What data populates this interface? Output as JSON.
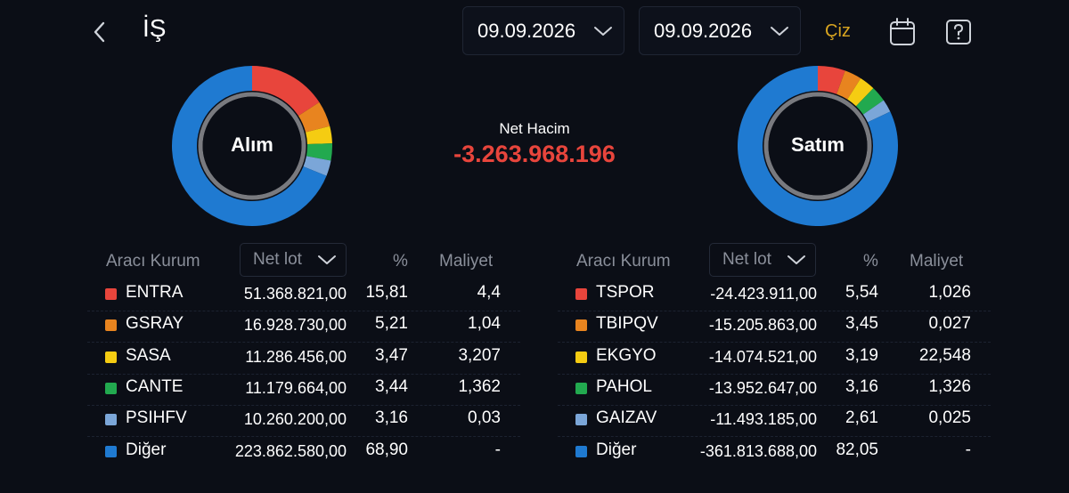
{
  "header": {
    "title": "İŞ",
    "date_start": "09.09.2026",
    "date_end": "09.09.2026",
    "draw_label": "Çiz",
    "accent_color": "#d9a520"
  },
  "summary": {
    "net_volume_label": "Net Hacim",
    "net_volume_value": "-3.263.968.196",
    "negative_color": "#e8453c"
  },
  "buy": {
    "chart_label": "Alım",
    "headers": {
      "broker": "Aracı Kurum",
      "lot_select": "Net lot",
      "pct": "%",
      "cost": "Maliyet"
    },
    "rows": [
      {
        "name": "ENTRA",
        "lot": "51.368.821,00",
        "pct": "15,81",
        "cost": "4,4",
        "color": "#e8453c"
      },
      {
        "name": "GSRAY",
        "lot": "16.928.730,00",
        "pct": "5,21",
        "cost": "1,04",
        "color": "#e8841f"
      },
      {
        "name": "SASA",
        "lot": "11.286.456,00",
        "pct": "3,47",
        "cost": "3,207",
        "color": "#f5cc12"
      },
      {
        "name": "CANTE",
        "lot": "11.179.664,00",
        "pct": "3,44",
        "cost": "1,362",
        "color": "#22a94f"
      },
      {
        "name": "PSIHFV",
        "lot": "10.260.200,00",
        "pct": "3,16",
        "cost": "0,03",
        "color": "#7ba6d8"
      },
      {
        "name": "Diğer",
        "lot": "223.862.580,00",
        "pct": "68,90",
        "cost": "-",
        "color": "#1f7ad1"
      }
    ]
  },
  "sell": {
    "chart_label": "Satım",
    "headers": {
      "broker": "Aracı Kurum",
      "lot_select": "Net lot",
      "pct": "%",
      "cost": "Maliyet"
    },
    "rows": [
      {
        "name": "TSPOR",
        "lot": "-24.423.911,00",
        "pct": "5,54",
        "cost": "1,026",
        "color": "#e8453c"
      },
      {
        "name": "TBIPQV",
        "lot": "-15.205.863,00",
        "pct": "3,45",
        "cost": "0,027",
        "color": "#e8841f"
      },
      {
        "name": "EKGYO",
        "lot": "-14.074.521,00",
        "pct": "3,19",
        "cost": "22,548",
        "color": "#f5cc12"
      },
      {
        "name": "PAHOL",
        "lot": "-13.952.647,00",
        "pct": "3,16",
        "cost": "1,326",
        "color": "#22a94f"
      },
      {
        "name": "GAIZAV",
        "lot": "-11.493.185,00",
        "pct": "2,61",
        "cost": "0,025",
        "color": "#7ba6d8"
      },
      {
        "name": "Diğer",
        "lot": "-361.813.688,00",
        "pct": "82,05",
        "cost": "-",
        "color": "#1f7ad1"
      }
    ]
  }
}
